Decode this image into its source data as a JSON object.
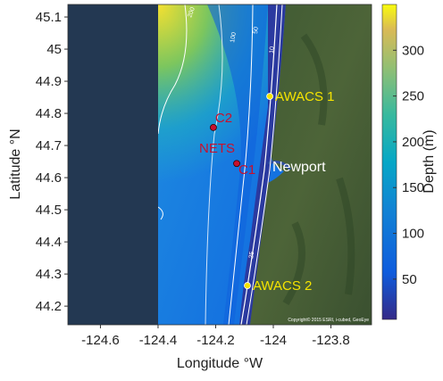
{
  "chart_data": {
    "type": "map",
    "xlabel": "Longitude °W",
    "ylabel": "Latitude °N",
    "xlim": [
      -124.713,
      -123.659
    ],
    "ylim": [
      44.142,
      45.139
    ],
    "xticks": [
      -124.6,
      -124.4,
      -124.2,
      -124,
      -123.8
    ],
    "yticks": [
      44.2,
      44.3,
      44.4,
      44.5,
      44.6,
      44.7,
      44.8,
      44.9,
      45,
      45.1
    ],
    "colorbar": {
      "label": "Depth (m)",
      "clim": [
        6,
        350
      ],
      "ticks": [
        50,
        100,
        150,
        200,
        250,
        300
      ]
    },
    "stations": [
      {
        "name": "AWACS 1",
        "lon": -124.012,
        "lat": 44.853,
        "color": "#f5e400"
      },
      {
        "name": "AWACS 2",
        "lon": -124.09,
        "lat": 44.264,
        "color": "#f5e400"
      },
      {
        "name": "C2",
        "lon": -124.208,
        "lat": 44.756,
        "color": "#c8102e"
      },
      {
        "name": "NETS",
        "lon": -124.127,
        "lat": 44.644,
        "color": "#c8102e"
      },
      {
        "name": "C1",
        "lon": -124.127,
        "lat": 44.644,
        "color": "#c8102e"
      }
    ],
    "place_label": "Newport",
    "contour_labels": [
      "200",
      "100",
      "50",
      "10",
      "25"
    ],
    "attribution": "Copyright© 2015 ESRI, i-cubed, GeoEye"
  }
}
